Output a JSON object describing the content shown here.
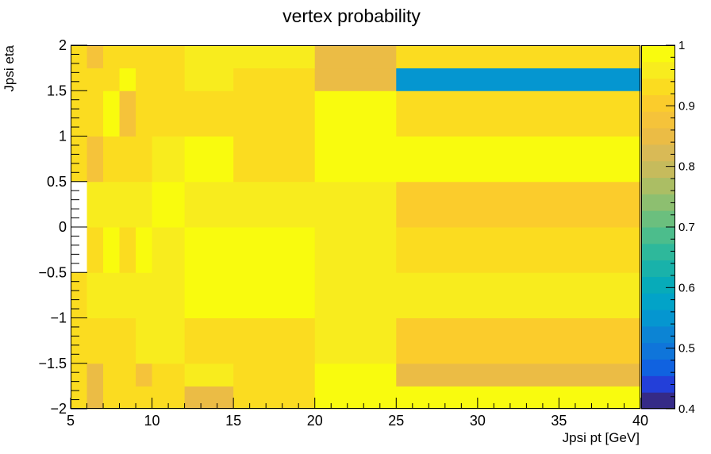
{
  "chart_data": {
    "type": "heatmap",
    "title": "vertex probability",
    "xlabel": "Jpsi pt [GeV]",
    "ylabel": "Jpsi eta",
    "xlim": [
      5,
      40
    ],
    "ylim": [
      -2,
      2
    ],
    "zlim": [
      0.4,
      1
    ],
    "x_edges": [
      5,
      6,
      7,
      8,
      9,
      10,
      12,
      15,
      20,
      25,
      40
    ],
    "y_edges": [
      -2,
      -1.75,
      -1.5,
      -1,
      -0.5,
      0,
      0.5,
      1,
      1.5,
      1.75,
      2
    ],
    "x_ticks": [
      5,
      10,
      15,
      20,
      25,
      30,
      35,
      40
    ],
    "y_ticks": [
      -2,
      -1.5,
      -1,
      -0.5,
      0,
      0.5,
      1,
      1.5,
      2
    ],
    "x_tick_labels": [
      "5",
      "10",
      "15",
      "20",
      "25",
      "30",
      "35",
      "40"
    ],
    "y_tick_labels": [
      "−2",
      "−1.5",
      "−1",
      "−0.5",
      "0",
      "0.5",
      "1",
      "1.5",
      "2"
    ],
    "colorbar_ticks": [
      0.4,
      0.5,
      0.6,
      0.7,
      0.8,
      0.9,
      1
    ],
    "colorbar_tick_labels": [
      "0.4",
      "0.5",
      "0.6",
      "0.7",
      "0.8",
      "0.9",
      "1"
    ],
    "palette": [
      "#352a87",
      "#233fd9",
      "#1062e0",
      "#0f75da",
      "#0c84d4",
      "#0596d0",
      "#02a3c8",
      "#07abb9",
      "#19b2aa",
      "#2eb89b",
      "#4cbd8c",
      "#6bbf7e",
      "#8dbf70",
      "#abbe64",
      "#c6bb5c",
      "#d9ba56",
      "#ebbc45",
      "#f5c33a",
      "#fbcc2c",
      "#fbdc20",
      "#f8ec1e",
      "#f9fb0e"
    ],
    "values": [
      [
        0.92,
        0.86,
        0.92,
        0.92,
        0.94,
        0.94,
        0.86,
        0.94,
        0.995,
        0.995
      ],
      [
        0.92,
        0.86,
        0.94,
        0.94,
        0.88,
        0.94,
        0.97,
        0.94,
        0.995,
        0.85
      ],
      [
        0.92,
        0.94,
        0.94,
        0.94,
        0.97,
        0.97,
        0.92,
        0.92,
        0.97,
        0.9
      ],
      [
        0.92,
        0.97,
        0.97,
        0.97,
        0.97,
        0.97,
        0.995,
        0.995,
        0.97,
        0.97
      ],
      [
        null,
        0.94,
        0.995,
        0.94,
        0.995,
        0.97,
        0.995,
        0.995,
        0.97,
        0.94
      ],
      [
        null,
        0.97,
        0.97,
        0.97,
        0.97,
        0.995,
        0.97,
        0.97,
        0.97,
        0.91
      ],
      [
        0.92,
        0.88,
        0.94,
        0.94,
        0.94,
        0.97,
        0.995,
        0.94,
        0.995,
        0.995
      ],
      [
        0.92,
        0.94,
        0.995,
        0.88,
        0.94,
        0.94,
        0.94,
        0.92,
        0.995,
        0.94
      ],
      [
        0.94,
        0.94,
        0.94,
        0.995,
        0.94,
        0.94,
        0.97,
        0.94,
        0.85,
        0.55
      ],
      [
        0.94,
        0.88,
        0.92,
        0.92,
        0.94,
        0.92,
        0.97,
        0.97,
        0.85,
        0.94
      ]
    ]
  }
}
